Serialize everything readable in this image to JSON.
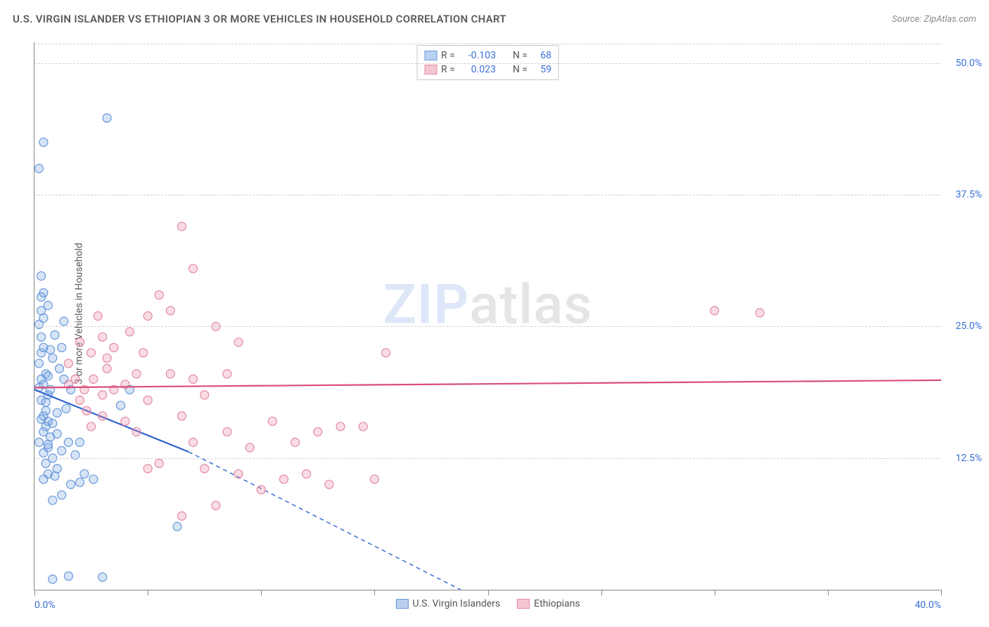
{
  "title": "U.S. VIRGIN ISLANDER VS ETHIOPIAN 3 OR MORE VEHICLES IN HOUSEHOLD CORRELATION CHART",
  "source": "Source: ZipAtlas.com",
  "ylabel": "3 or more Vehicles in Household",
  "watermark": {
    "zip": "ZIP",
    "atlas": "atlas"
  },
  "chart": {
    "type": "scatter-correlation",
    "background_color": "#ffffff",
    "grid_color": "#d0d0d0",
    "axis_color": "#888888",
    "label_color": "#3b6fd8",
    "text_color": "#5a5a5a",
    "xlim": [
      0,
      40
    ],
    "ylim": [
      0,
      52
    ],
    "xtick_positions": [
      0,
      5,
      10,
      15,
      20,
      25,
      30,
      35,
      40
    ],
    "xtick_labels": [
      "0.0%",
      "",
      "",
      "",
      "",
      "",
      "",
      "",
      "40.0%"
    ],
    "ytick_positions": [
      12.5,
      25.0,
      37.5,
      50.0
    ],
    "ytick_labels": [
      "12.5%",
      "25.0%",
      "37.5%",
      "50.0%"
    ],
    "marker_radius": 6,
    "marker_stroke_width": 1.2,
    "line_width_solid": 2.2,
    "line_width_dash": 1.4,
    "dash_pattern": "6,5",
    "series": [
      {
        "name": "U.S. Virgin Islanders",
        "swatch_fill": "#b9d0f0",
        "swatch_stroke": "#6a98db",
        "marker_fill": "rgba(120,165,225,0.30)",
        "marker_stroke": "#6a98db",
        "line_color": "#2f63d0",
        "R": "-0.103",
        "N": "68",
        "trend_solid": {
          "x1": 0.0,
          "y1": 19.0,
          "x2": 6.8,
          "y2": 13.1
        },
        "trend_dash": {
          "x1": 6.8,
          "y1": 13.1,
          "x2": 18.8,
          "y2": 0.0
        },
        "points": [
          [
            0.2,
            19.2
          ],
          [
            0.3,
            22.5
          ],
          [
            0.3,
            27.8
          ],
          [
            0.2,
            25.2
          ],
          [
            0.3,
            29.8
          ],
          [
            0.4,
            28.2
          ],
          [
            0.3,
            24.0
          ],
          [
            0.4,
            23.0
          ],
          [
            0.2,
            21.5
          ],
          [
            0.5,
            20.5
          ],
          [
            0.3,
            20.0
          ],
          [
            0.4,
            19.5
          ],
          [
            0.6,
            18.5
          ],
          [
            0.3,
            18.0
          ],
          [
            0.5,
            17.0
          ],
          [
            0.4,
            16.5
          ],
          [
            0.6,
            16.0
          ],
          [
            0.3,
            16.2
          ],
          [
            0.5,
            15.5
          ],
          [
            0.4,
            15.0
          ],
          [
            0.7,
            14.5
          ],
          [
            0.2,
            14.0
          ],
          [
            0.6,
            13.5
          ],
          [
            0.4,
            13.0
          ],
          [
            0.8,
            12.5
          ],
          [
            0.5,
            12.0
          ],
          [
            1.0,
            11.5
          ],
          [
            0.6,
            11.0
          ],
          [
            0.9,
            10.8
          ],
          [
            0.4,
            10.5
          ],
          [
            1.2,
            13.2
          ],
          [
            1.5,
            14.0
          ],
          [
            1.8,
            12.8
          ],
          [
            1.0,
            16.8
          ],
          [
            1.4,
            17.2
          ],
          [
            1.6,
            19.0
          ],
          [
            2.0,
            14.0
          ],
          [
            2.2,
            11.0
          ],
          [
            2.6,
            10.5
          ],
          [
            0.4,
            42.5
          ],
          [
            3.2,
            44.8
          ],
          [
            0.2,
            40.0
          ],
          [
            3.8,
            17.5
          ],
          [
            4.2,
            19.0
          ],
          [
            0.8,
            8.5
          ],
          [
            1.2,
            9.0
          ],
          [
            1.6,
            10.0
          ],
          [
            2.0,
            10.2
          ],
          [
            6.3,
            6.0
          ],
          [
            3.0,
            1.2
          ],
          [
            0.8,
            1.0
          ],
          [
            1.5,
            1.3
          ],
          [
            0.6,
            13.8
          ],
          [
            1.0,
            14.8
          ],
          [
            0.8,
            15.8
          ],
          [
            1.3,
            20.0
          ],
          [
            1.1,
            21.0
          ],
          [
            0.7,
            22.8
          ],
          [
            0.9,
            24.2
          ],
          [
            1.3,
            25.5
          ],
          [
            0.6,
            20.3
          ],
          [
            0.8,
            22.0
          ],
          [
            1.2,
            23.0
          ],
          [
            0.5,
            17.8
          ],
          [
            0.7,
            19.0
          ],
          [
            0.3,
            26.5
          ],
          [
            0.4,
            25.8
          ],
          [
            0.6,
            27.0
          ]
        ]
      },
      {
        "name": "Ethiopians",
        "swatch_fill": "#f4c6d2",
        "swatch_stroke": "#e28aa3",
        "marker_fill": "rgba(235,140,165,0.30)",
        "marker_stroke": "#e28aa3",
        "line_color": "#d94f7a",
        "R": "0.023",
        "N": "59",
        "trend_solid": {
          "x1": 0.0,
          "y1": 19.2,
          "x2": 40.0,
          "y2": 19.9
        },
        "trend_dash": null,
        "points": [
          [
            1.5,
            21.5
          ],
          [
            2.0,
            23.5
          ],
          [
            2.5,
            22.5
          ],
          [
            3.0,
            24.0
          ],
          [
            3.2,
            21.0
          ],
          [
            3.5,
            23.0
          ],
          [
            2.8,
            26.0
          ],
          [
            4.0,
            19.5
          ],
          [
            4.5,
            20.5
          ],
          [
            5.0,
            18.0
          ],
          [
            2.2,
            19.0
          ],
          [
            2.6,
            20.0
          ],
          [
            3.2,
            22.0
          ],
          [
            4.8,
            22.5
          ],
          [
            5.0,
            26.0
          ],
          [
            6.5,
            34.5
          ],
          [
            5.5,
            28.0
          ],
          [
            7.0,
            30.5
          ],
          [
            6.0,
            26.5
          ],
          [
            8.0,
            25.0
          ],
          [
            9.0,
            23.5
          ],
          [
            8.5,
            15.0
          ],
          [
            7.5,
            18.5
          ],
          [
            6.5,
            16.5
          ],
          [
            5.0,
            11.5
          ],
          [
            5.5,
            12.0
          ],
          [
            6.5,
            7.0
          ],
          [
            8.0,
            8.0
          ],
          [
            9.5,
            13.5
          ],
          [
            10.0,
            9.5
          ],
          [
            10.5,
            16.0
          ],
          [
            11.0,
            10.5
          ],
          [
            11.5,
            14.0
          ],
          [
            12.0,
            11.0
          ],
          [
            13.0,
            10.0
          ],
          [
            15.0,
            10.5
          ],
          [
            14.5,
            15.5
          ],
          [
            15.5,
            22.5
          ],
          [
            30.0,
            26.5
          ],
          [
            32.0,
            26.3
          ],
          [
            2.0,
            18.0
          ],
          [
            2.3,
            17.0
          ],
          [
            1.8,
            20.0
          ],
          [
            3.5,
            19.0
          ],
          [
            4.2,
            24.5
          ],
          [
            7.5,
            11.5
          ],
          [
            7.0,
            14.0
          ],
          [
            9.0,
            11.0
          ],
          [
            3.0,
            18.5
          ],
          [
            4.0,
            16.0
          ],
          [
            6.0,
            20.5
          ],
          [
            7.0,
            20.0
          ],
          [
            8.5,
            20.5
          ],
          [
            12.5,
            15.0
          ],
          [
            13.5,
            15.5
          ],
          [
            2.5,
            15.5
          ],
          [
            3.0,
            16.5
          ],
          [
            4.5,
            15.0
          ],
          [
            1.5,
            19.5
          ]
        ]
      }
    ],
    "legend_top": {
      "rows": [
        {
          "series_index": 0,
          "r_label": "R =",
          "n_label": "N ="
        },
        {
          "series_index": 1,
          "r_label": "R =",
          "n_label": "N ="
        }
      ]
    },
    "legend_bottom": [
      {
        "series_index": 0
      },
      {
        "series_index": 1
      }
    ]
  }
}
